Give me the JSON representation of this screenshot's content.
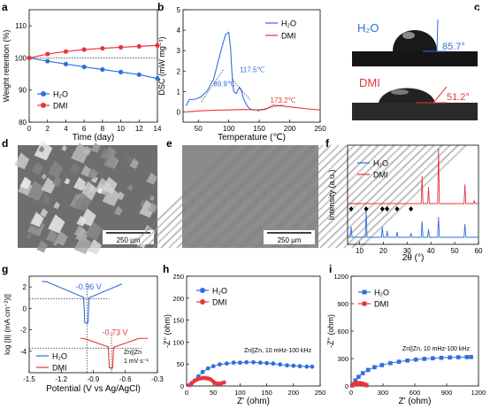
{
  "colors": {
    "blue": "#2f6fdb",
    "red": "#e8353b",
    "black": "#000000"
  },
  "panels": {
    "a": {
      "letter": "a",
      "xlabel": "Time (day)",
      "ylabel": "Weight retention (%)",
      "xticks": [
        "0",
        "2",
        "4",
        "6",
        "8",
        "10",
        "12",
        "14"
      ],
      "yticks": [
        "80",
        "90",
        "100",
        "110"
      ],
      "legend": [
        "H₂O",
        "DMI"
      ]
    },
    "b": {
      "letter": "b",
      "xlabel": "Temperature (℃)",
      "ylabel": "DSC (mW mg⁻¹)",
      "xticks": [
        "50",
        "100",
        "150",
        "200",
        "250"
      ],
      "yticks": [
        "0",
        "1",
        "2",
        "3",
        "4",
        "5"
      ],
      "legend": [
        "H₂O",
        "DMI"
      ],
      "annotations": [
        "89.9℃",
        "117.5℃",
        "173.2℃"
      ]
    },
    "c": {
      "letter": "c",
      "h2o_label": "H₂O",
      "h2o_angle": "85.7°",
      "dmi_label": "DMI",
      "dmi_angle": "51.2°"
    },
    "d": {
      "letter": "d",
      "scale": "250 μm"
    },
    "e": {
      "letter": "e",
      "scale": "250 μm"
    },
    "f": {
      "letter": "f",
      "xlabel": "2θ (°)",
      "ylabel": "Intensity (a.u.)",
      "xticks": [
        "10",
        "20",
        "30",
        "40",
        "50",
        "60"
      ],
      "legend": [
        "H₂O",
        "DMI"
      ]
    },
    "g": {
      "letter": "g",
      "xlabel": "Potential (V vs Ag/AgCl)",
      "ylabel": "log [|I| (mA cm⁻²)|]",
      "xticks": [
        "-1.5",
        "-1.2",
        "-0.9",
        "-0.6",
        "-0.3"
      ],
      "yticks": [
        "-4",
        "-2",
        "0",
        "2"
      ],
      "legend": [
        "H₂O",
        "DMI"
      ],
      "annotations": [
        "-0.96 V",
        "-0.73 V"
      ],
      "cell_label": "Zn||Zn",
      "rate_label": "1 mV s⁻¹"
    },
    "h": {
      "letter": "h",
      "xlabel": "Z' (ohm)",
      "ylabel": "-Z'' (ohm)",
      "xticks": [
        "0",
        "50",
        "100",
        "150",
        "200",
        "250"
      ],
      "yticks": [
        "0",
        "25",
        "50",
        "75",
        "100",
        "125",
        "150",
        "175",
        "200",
        "225",
        "250"
      ],
      "legend": [
        "H₂O",
        "DMI"
      ],
      "note": "Zn||Zn, 10 mHz-100 kHz"
    },
    "i": {
      "letter": "i",
      "xlabel": "Z' (ohm)",
      "ylabel": "-Z'' (ohm)",
      "xticks": [
        "0",
        "300",
        "600",
        "900",
        "1200"
      ],
      "yticks": [
        "0",
        "300",
        "600",
        "900",
        "1200"
      ],
      "legend": [
        "H₂O",
        "DMI"
      ],
      "note": "Zn||Zn, 10 mHz-100 kHz"
    }
  },
  "chart_data": [
    {
      "panel": "a",
      "type": "line",
      "xlim": [
        0,
        14
      ],
      "ylim": [
        80,
        115
      ],
      "series": [
        {
          "name": "H₂O",
          "color": "#2f6fdb",
          "x": [
            0,
            2,
            4,
            6,
            8,
            10,
            12,
            14
          ],
          "y": [
            100,
            99,
            98.1,
            97.2,
            96.4,
            95.6,
            94.8,
            93.6
          ]
        },
        {
          "name": "DMI",
          "color": "#e8353b",
          "x": [
            0,
            2,
            4,
            6,
            8,
            10,
            12,
            14
          ],
          "y": [
            100,
            101.2,
            102,
            102.6,
            103,
            103.3,
            103.6,
            103.9
          ]
        }
      ],
      "reference_line": 100
    },
    {
      "panel": "b",
      "type": "line",
      "xlim": [
        25,
        250
      ],
      "ylim": [
        -0.5,
        5
      ],
      "series": [
        {
          "name": "H₂O",
          "color": "#2f6fdb",
          "x": [
            30,
            35,
            45,
            55,
            65,
            75,
            82,
            89.9,
            95,
            100,
            103,
            105,
            108,
            112,
            117.5,
            120,
            125,
            130,
            135,
            140,
            145,
            150
          ],
          "y": [
            0.3,
            0.6,
            0.62,
            0.75,
            1.05,
            1.6,
            2.4,
            3.3,
            3.8,
            3.9,
            3.1,
            2.0,
            1.0,
            0.9,
            1.2,
            1.1,
            0.6,
            0.3,
            0.15,
            0.1,
            0.1,
            0.05
          ]
        },
        {
          "name": "DMI",
          "color": "#e8353b",
          "x": [
            30,
            50,
            75,
            100,
            125,
            150,
            160,
            173.2,
            185,
            200,
            215,
            230,
            250
          ],
          "y": [
            0.0,
            0.05,
            0.08,
            0.1,
            0.12,
            0.1,
            0.12,
            0.33,
            0.3,
            0.25,
            0.2,
            0.15,
            0.1
          ]
        }
      ]
    },
    {
      "panel": "f",
      "type": "line",
      "xlim": [
        5,
        60
      ],
      "series": [
        {
          "name": "H₂O",
          "color": "#2f6fdb",
          "peaks": [
            [
              6.5,
              0.2
            ],
            [
              12.8,
              0.5
            ],
            [
              19.6,
              0.2
            ],
            [
              21.6,
              0.12
            ],
            [
              25.8,
              0.1
            ],
            [
              31.6,
              0.08
            ],
            [
              36.3,
              0.3
            ],
            [
              39,
              0.15
            ],
            [
              43.2,
              0.38
            ],
            [
              54.3,
              0.25
            ]
          ]
        },
        {
          "name": "DMI",
          "color": "#e8353b",
          "peaks": [
            [
              36.3,
              0.5
            ],
            [
              39,
              0.3
            ],
            [
              43.2,
              1.0
            ],
            [
              54.3,
              0.35
            ],
            [
              58.2,
              0.05
            ]
          ]
        }
      ],
      "markers_2theta": [
        6.5,
        12.8,
        19.6,
        21.6,
        25.8,
        31.6
      ]
    },
    {
      "panel": "g",
      "type": "line",
      "xlim": [
        -1.5,
        -0.3
      ],
      "ylim": [
        -6,
        3
      ],
      "series": [
        {
          "name": "H₂O",
          "color": "#2f6fdb",
          "corrosion_potential": -0.96
        },
        {
          "name": "DMI",
          "color": "#e8353b",
          "corrosion_potential": -0.73
        }
      ]
    },
    {
      "panel": "h",
      "type": "scatter",
      "xlim": [
        0,
        250
      ],
      "ylim": [
        0,
        250
      ],
      "series": [
        {
          "name": "H₂O",
          "color": "#2f6fdb",
          "x": [
            8,
            15,
            22,
            30,
            40,
            50,
            62,
            75,
            88,
            100,
            112,
            125,
            138,
            150,
            162,
            175,
            188,
            200,
            212,
            225,
            235
          ],
          "y": [
            3,
            12,
            22,
            32,
            40,
            45,
            49,
            51,
            53,
            53,
            54,
            54,
            53,
            52,
            51,
            49,
            47,
            46,
            45,
            44,
            44
          ]
        },
        {
          "name": "DMI",
          "color": "#e8353b",
          "x": [
            5,
            10,
            15,
            20,
            25,
            30,
            35,
            40,
            45,
            50,
            55,
            60,
            65,
            70
          ],
          "y": [
            2,
            7,
            12,
            15,
            17,
            18,
            18,
            17,
            15,
            10,
            6,
            5,
            6,
            8
          ]
        }
      ]
    },
    {
      "panel": "i",
      "type": "scatter",
      "xlim": [
        0,
        1200
      ],
      "ylim": [
        0,
        1200
      ],
      "series": [
        {
          "name": "H₂O",
          "color": "#2f6fdb",
          "x": [
            15,
            40,
            70,
            110,
            160,
            220,
            290,
            370,
            450,
            530,
            610,
            690,
            770,
            850,
            930,
            1010,
            1090,
            1130
          ],
          "y": [
            20,
            60,
            100,
            140,
            175,
            205,
            228,
            250,
            265,
            278,
            288,
            296,
            303,
            308,
            312,
            314,
            316,
            317
          ]
        },
        {
          "name": "DMI",
          "color": "#e8353b",
          "x": [
            10,
            25,
            40,
            55,
            70,
            85,
            100,
            115,
            130,
            145
          ],
          "y": [
            5,
            15,
            25,
            30,
            32,
            30,
            26,
            20,
            14,
            8
          ]
        }
      ]
    }
  ]
}
